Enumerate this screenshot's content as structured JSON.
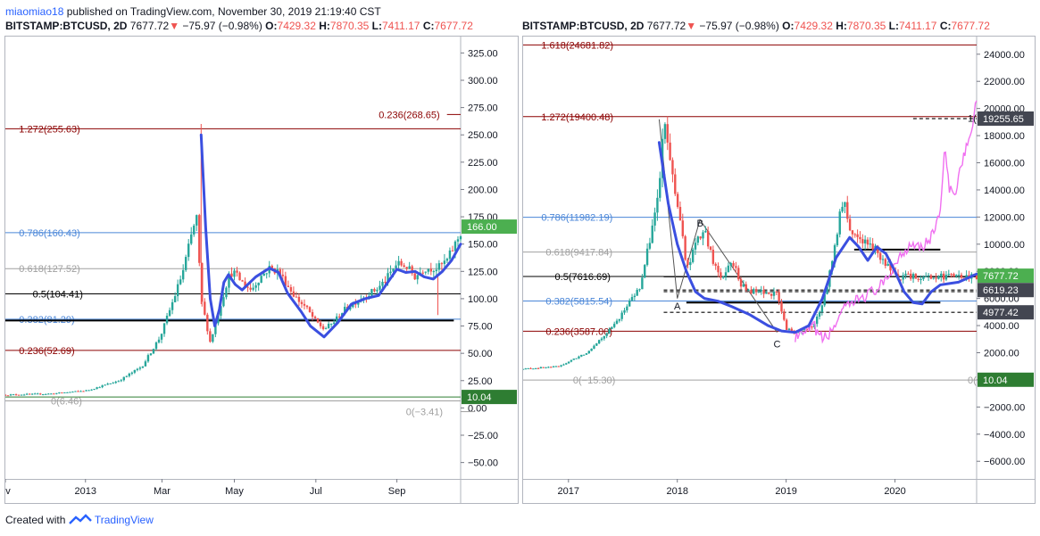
{
  "header": {
    "username": "miaomiao18",
    "published_text": "published on TradingView.com, November 30, 2019 21:19:40 CST"
  },
  "symbol_line": {
    "symbol": "BITSTAMP:BTCUSD, 2D",
    "last": "7677.72",
    "arrow": "▼",
    "change": "−75.97 (−0.98%)",
    "o_label": "O:",
    "o_value": "7429.32",
    "h_label": "H:",
    "h_value": "7870.35",
    "l_label": "L:",
    "l_value": "7411.17",
    "c_label": "C:",
    "c_value": "7677.72"
  },
  "footer": {
    "created_with": "Created with",
    "brand": "TradingView"
  },
  "colors": {
    "up": "#26a69a",
    "down": "#ef5350",
    "blue_curve": "#3b4fe0",
    "pink_projection": "#f06ff0",
    "fib_red": "#8b0000",
    "fib_blue": "#4a86d8",
    "fib_gray": "#a0a0a0",
    "tag_green": "#4caf50",
    "tag_dark": "#2e7d32",
    "tag_gray": "#434651"
  },
  "chart_data": [
    {
      "type": "candlestick",
      "title": "",
      "x_tick_labels": [
        "ov",
        "2013",
        "Mar",
        "May",
        "Jul",
        "Sep"
      ],
      "y_tick_labels": [
        "325.00",
        "300.00",
        "275.00",
        "250.00",
        "225.00",
        "200.00",
        "175.00",
        "150.00",
        "125.00",
        "100.00",
        "75.00",
        "50.00",
        "25.00",
        "0.00",
        "−25.00",
        "−50.00"
      ],
      "ylim": [
        -65,
        340
      ],
      "y_ticks": [
        325,
        300,
        275,
        250,
        225,
        200,
        175,
        150,
        125,
        100,
        75,
        50,
        25,
        0,
        -25,
        -50
      ],
      "x_ticks": [
        0.0,
        0.176,
        0.344,
        0.503,
        0.682,
        0.86
      ],
      "price_path": [
        [
          0,
          12
        ],
        [
          0.1,
          13
        ],
        [
          0.18,
          16
        ],
        [
          0.25,
          25
        ],
        [
          0.3,
          38
        ],
        [
          0.34,
          65
        ],
        [
          0.37,
          100
        ],
        [
          0.39,
          125
        ],
        [
          0.41,
          160
        ],
        [
          0.42,
          175
        ],
        [
          0.43,
          100
        ],
        [
          0.45,
          60
        ],
        [
          0.47,
          90
        ],
        [
          0.49,
          120
        ],
        [
          0.5,
          125
        ],
        [
          0.52,
          115
        ],
        [
          0.54,
          108
        ],
        [
          0.56,
          120
        ],
        [
          0.58,
          128
        ],
        [
          0.6,
          125
        ],
        [
          0.62,
          112
        ],
        [
          0.64,
          100
        ],
        [
          0.66,
          92
        ],
        [
          0.68,
          80
        ],
        [
          0.7,
          72
        ],
        [
          0.72,
          78
        ],
        [
          0.74,
          88
        ],
        [
          0.76,
          95
        ],
        [
          0.78,
          100
        ],
        [
          0.8,
          105
        ],
        [
          0.82,
          110
        ],
        [
          0.84,
          120
        ],
        [
          0.86,
          132
        ],
        [
          0.88,
          130
        ],
        [
          0.9,
          120
        ],
        [
          0.92,
          128
        ],
        [
          0.95,
          128
        ],
        [
          0.97,
          135
        ],
        [
          1.0,
          160
        ]
      ],
      "spike_high": 260,
      "blue_curve": [
        [
          0.43,
          250
        ],
        [
          0.44,
          165
        ],
        [
          0.45,
          100
        ],
        [
          0.46,
          75
        ],
        [
          0.47,
          90
        ],
        [
          0.48,
          115
        ],
        [
          0.49,
          122
        ],
        [
          0.505,
          113
        ],
        [
          0.52,
          108
        ],
        [
          0.55,
          120
        ],
        [
          0.58,
          128
        ],
        [
          0.6,
          124
        ],
        [
          0.62,
          105
        ],
        [
          0.65,
          88
        ],
        [
          0.67,
          75
        ],
        [
          0.7,
          65
        ],
        [
          0.73,
          78
        ],
        [
          0.76,
          95
        ],
        [
          0.79,
          100
        ],
        [
          0.82,
          103
        ],
        [
          0.84,
          115
        ],
        [
          0.86,
          127
        ],
        [
          0.88,
          124
        ],
        [
          0.9,
          125
        ],
        [
          0.92,
          120
        ],
        [
          0.94,
          118
        ],
        [
          0.96,
          125
        ],
        [
          0.98,
          135
        ],
        [
          1.0,
          150
        ]
      ],
      "fib_levels": [
        {
          "label": "1.272(255.63)",
          "value": 255.63,
          "color": "#8b0000",
          "label_x": 0.03
        },
        {
          "label": "0.236(268.65)",
          "value": 268.65,
          "color": "#8b0000",
          "label_x": 0.82,
          "segment": true
        },
        {
          "label": "0.786(160.43)",
          "value": 160.43,
          "color": "#4a86d8",
          "label_x": 0.03
        },
        {
          "label": "0.618(127.52)",
          "value": 127.52,
          "color": "#a0a0a0",
          "label_x": 0.03
        },
        {
          "label": "0.5(104.41)",
          "value": 104.41,
          "color": "#000000",
          "label_x": 0.06
        },
        {
          "label": "0.382(81.29)",
          "value": 81.29,
          "color": "#4a86d8",
          "label_x": 0.03
        },
        {
          "label": "0.236(52.69)",
          "value": 52.69,
          "color": "#8b0000",
          "label_x": 0.03
        },
        {
          "label": "0(6.46)",
          "value": 6.46,
          "color": "#a0a0a0",
          "label_x": 0.1
        },
        {
          "label": "0(−3.41)",
          "value": -3.41,
          "color": "#a0a0a0",
          "label_x": 0.88,
          "segment": true
        }
      ],
      "support_line": 80,
      "green_line": 10.04,
      "price_tags": [
        {
          "text": "166.00",
          "value": 166.0,
          "bg": "#4caf50"
        },
        {
          "text": "10.04",
          "value": 10.04,
          "bg": "#2e7d32"
        }
      ]
    },
    {
      "type": "candlestick",
      "title": "",
      "x_tick_labels": [
        "2017",
        "2018",
        "2019",
        "2020"
      ],
      "y_tick_labels": [
        "24000.00",
        "22000.00",
        "20000.00",
        "18000.00",
        "16000.00",
        "14000.00",
        "12000.00",
        "10000.00",
        "8000.00",
        "6000.00",
        "4000.00",
        "2000.00",
        "0.00",
        "−2000.00",
        "−4000.00",
        "−6000.00"
      ],
      "ylim": [
        -7300,
        25300
      ],
      "y_ticks": [
        24000,
        22000,
        20000,
        18000,
        16000,
        14000,
        12000,
        10000,
        8000,
        6000,
        4000,
        2000,
        0,
        -2000,
        -4000,
        -6000
      ],
      "x_ticks": [
        0.1,
        0.34,
        0.58,
        0.82
      ],
      "price_path": [
        [
          0,
          800
        ],
        [
          0.08,
          1000
        ],
        [
          0.14,
          2000
        ],
        [
          0.2,
          4000
        ],
        [
          0.26,
          7000
        ],
        [
          0.3,
          14000
        ],
        [
          0.31,
          19000
        ],
        [
          0.33,
          15000
        ],
        [
          0.35,
          11000
        ],
        [
          0.36,
          8000
        ],
        [
          0.38,
          10000
        ],
        [
          0.4,
          11000
        ],
        [
          0.42,
          8500
        ],
        [
          0.44,
          7500
        ],
        [
          0.46,
          9000
        ],
        [
          0.48,
          7000
        ],
        [
          0.5,
          6500
        ],
        [
          0.52,
          6500
        ],
        [
          0.54,
          6400
        ],
        [
          0.56,
          6300
        ],
        [
          0.57,
          5000
        ],
        [
          0.58,
          3800
        ],
        [
          0.6,
          3400
        ],
        [
          0.62,
          3700
        ],
        [
          0.64,
          4000
        ],
        [
          0.66,
          5500
        ],
        [
          0.68,
          8500
        ],
        [
          0.7,
          12500
        ],
        [
          0.71,
          13000
        ],
        [
          0.72,
          11000
        ],
        [
          0.74,
          10500
        ],
        [
          0.76,
          10000
        ],
        [
          0.78,
          9500
        ],
        [
          0.8,
          8500
        ],
        [
          0.82,
          7600
        ]
      ],
      "blue_curve": [
        [
          0.3,
          17500
        ],
        [
          0.32,
          13000
        ],
        [
          0.34,
          10000
        ],
        [
          0.36,
          8000
        ],
        [
          0.38,
          6500
        ],
        [
          0.4,
          6000
        ],
        [
          0.43,
          5800
        ],
        [
          0.46,
          5400
        ],
        [
          0.5,
          4800
        ],
        [
          0.54,
          4000
        ],
        [
          0.57,
          3600
        ],
        [
          0.6,
          3500
        ],
        [
          0.63,
          4000
        ],
        [
          0.66,
          6000
        ],
        [
          0.69,
          9000
        ],
        [
          0.72,
          10500
        ],
        [
          0.74,
          9800
        ],
        [
          0.76,
          8800
        ],
        [
          0.78,
          9800
        ],
        [
          0.8,
          9300
        ],
        [
          0.82,
          8000
        ],
        [
          0.84,
          6500
        ],
        [
          0.86,
          5700
        ],
        [
          0.88,
          5600
        ],
        [
          0.9,
          6500
        ],
        [
          0.92,
          7000
        ],
        [
          0.94,
          7100
        ],
        [
          0.96,
          7200
        ],
        [
          0.98,
          7500
        ],
        [
          1.0,
          7800
        ]
      ],
      "pink_projection": [
        [
          0.6,
          3200
        ],
        [
          0.62,
          3300
        ],
        [
          0.64,
          4000
        ],
        [
          0.66,
          3000
        ],
        [
          0.68,
          3500
        ],
        [
          0.7,
          5000
        ],
        [
          0.72,
          5400
        ],
        [
          0.74,
          6000
        ],
        [
          0.76,
          6300
        ],
        [
          0.78,
          6700
        ],
        [
          0.8,
          7200
        ],
        [
          0.82,
          8600
        ],
        [
          0.84,
          9500
        ],
        [
          0.86,
          10200
        ],
        [
          0.88,
          9800
        ],
        [
          0.9,
          10500
        ],
        [
          0.92,
          12500
        ],
        [
          0.93,
          17000
        ],
        [
          0.94,
          14000
        ],
        [
          0.95,
          13500
        ],
        [
          0.96,
          15000
        ],
        [
          0.97,
          16500
        ],
        [
          0.98,
          17500
        ],
        [
          0.99,
          18000
        ],
        [
          1.0,
          20800
        ]
      ],
      "fib_levels": [
        {
          "label": "1.618(24681.82)",
          "value": 24681.82,
          "color": "#8b0000",
          "label_x": 0.04
        },
        {
          "label": "1.272(19400.48)",
          "value": 19400.48,
          "color": "#8b0000",
          "label_x": 0.04
        },
        {
          "label": "0.786(11982.19)",
          "value": 11982.19,
          "color": "#4a86d8",
          "label_x": 0.04
        },
        {
          "label": "0.618(9417.84)",
          "value": 9417.84,
          "color": "#a0a0a0",
          "label_x": 0.05
        },
        {
          "label": "0.5(7616.69)",
          "value": 7616.69,
          "color": "#000000",
          "label_x": 0.07
        },
        {
          "label": "0.382(5815.54)",
          "value": 5815.54,
          "color": "#4a86d8",
          "label_x": 0.05
        },
        {
          "label": "0.236(3587.00)",
          "value": 3587.0,
          "color": "#8b0000",
          "label_x": 0.05
        },
        {
          "label": "0(−15.30)",
          "value": -15.3,
          "color": "#a0a0a0",
          "label_x": 0.11
        }
      ],
      "dashed_levels": [
        19255.65,
        6619.23,
        6500,
        4977.42
      ],
      "abc_labels": [
        {
          "text": "A",
          "x": 0.34,
          "value": 5200
        },
        {
          "text": "B",
          "x": 0.39,
          "value": 11300
        },
        {
          "text": "C",
          "x": 0.56,
          "value": 2400
        }
      ],
      "right_label": "1(",
      "zero_right_label": "0(",
      "price_tags": [
        {
          "text": "19255.65",
          "value": 19255.65,
          "bg": "#434651"
        },
        {
          "text": "7677.72",
          "value": 7677.72,
          "bg": "#4caf50"
        },
        {
          "text": "6619.23",
          "value": 6619.23,
          "bg": "#434651"
        },
        {
          "text": "4977.42",
          "value": 4977.42,
          "bg": "#434651"
        },
        {
          "text": "10.04",
          "value": 10.04,
          "bg": "#2e7d32"
        }
      ]
    }
  ]
}
